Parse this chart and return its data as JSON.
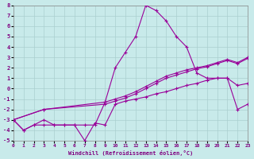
{
  "xlabel": "Windchill (Refroidissement éolien,°C)",
  "bg_color": "#c8eaea",
  "grid_color": "#aacfcf",
  "line_color": "#990099",
  "xlim": [
    0,
    23
  ],
  "ylim": [
    -5,
    8
  ],
  "xticks": [
    0,
    1,
    2,
    3,
    4,
    5,
    6,
    7,
    8,
    9,
    10,
    11,
    12,
    13,
    14,
    15,
    16,
    17,
    18,
    19,
    20,
    21,
    22,
    23
  ],
  "yticks": [
    -5,
    -4,
    -3,
    -2,
    -1,
    0,
    1,
    2,
    3,
    4,
    5,
    6,
    7,
    8
  ],
  "lines": [
    {
      "x": [
        0,
        1,
        2,
        3,
        4,
        5,
        6,
        7,
        8,
        9,
        10,
        11,
        12,
        13,
        14,
        15,
        16,
        17,
        18,
        19,
        20,
        21,
        22,
        23
      ],
      "y": [
        -3,
        -4,
        -3.5,
        -3.5,
        -3.5,
        -3.5,
        -3.5,
        -5,
        -3.3,
        -3.5,
        -1.5,
        -1.2,
        -1,
        -0.8,
        -0.5,
        -0.3,
        0,
        0.3,
        0.5,
        0.8,
        1,
        1,
        0.3,
        0.5
      ]
    },
    {
      "x": [
        0,
        3,
        9,
        10,
        11,
        12,
        13,
        14,
        15,
        16,
        17,
        18,
        19,
        20,
        21,
        22,
        23
      ],
      "y": [
        -3,
        -2,
        -1.3,
        -1,
        -0.7,
        -0.3,
        0.2,
        0.7,
        1.2,
        1.5,
        1.8,
        2,
        2.2,
        2.5,
        2.8,
        2.5,
        3
      ]
    },
    {
      "x": [
        0,
        3,
        9,
        10,
        11,
        12,
        13,
        14,
        15,
        16,
        17,
        18,
        19,
        20,
        21,
        22,
        23
      ],
      "y": [
        -3,
        -2,
        -1.5,
        -1.2,
        -0.9,
        -0.5,
        0,
        0.5,
        1,
        1.3,
        1.6,
        1.9,
        2.1,
        2.4,
        2.7,
        2.4,
        2.9
      ]
    },
    {
      "x": [
        0,
        1,
        2,
        3,
        4,
        5,
        6,
        7,
        8,
        9,
        10,
        11,
        12,
        13,
        14,
        15,
        16,
        17,
        18,
        19,
        20,
        21,
        22,
        23
      ],
      "y": [
        -3,
        -4,
        -3.5,
        -3,
        -3.5,
        -3.5,
        -3.5,
        -3.5,
        -3.5,
        -1.3,
        2,
        3.5,
        5,
        8,
        7.5,
        6.5,
        5,
        4,
        1.5,
        1,
        1,
        1,
        -2,
        -1.5
      ]
    }
  ]
}
